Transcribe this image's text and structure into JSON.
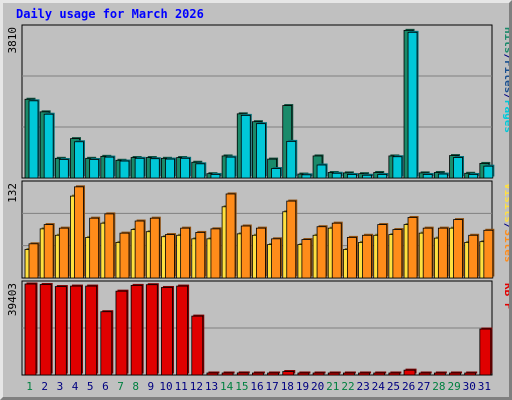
{
  "title": "Daily usage for March 2026",
  "colors": {
    "background": "#c0c0c0",
    "title": "#0000ff",
    "grid": "#808080",
    "pages": "#00c8d8",
    "files": "#1a8a6a",
    "hits": "#2ab4b4",
    "sites": "#ff8c1a",
    "visits": "#ffe040",
    "kbf": "#e00000",
    "weekday_label": "#000080",
    "weekend_label": "#008040"
  },
  "chart_data": [
    {
      "type": "bar",
      "panel": "top",
      "ylabel_max": "3810",
      "ylim": [
        0,
        3810
      ],
      "legend": [
        {
          "text": "Pages",
          "color": "#00c8d8"
        },
        {
          "text": "/",
          "color": "#000080"
        },
        {
          "text": "Files",
          "color": "#1a5090"
        },
        {
          "text": "/",
          "color": "#000080"
        },
        {
          "text": "Hits",
          "color": "#1a8a6a"
        }
      ],
      "categories": [
        "1",
        "2",
        "3",
        "4",
        "5",
        "6",
        "7",
        "8",
        "9",
        "10",
        "11",
        "12",
        "13",
        "14",
        "15",
        "16",
        "17",
        "18",
        "19",
        "20",
        "21",
        "22",
        "23",
        "24",
        "25",
        "26",
        "27",
        "28",
        "29",
        "30",
        "31"
      ],
      "series": [
        {
          "name": "Hits",
          "values": [
            2000,
            1680,
            500,
            1000,
            500,
            550,
            450,
            520,
            520,
            500,
            520,
            400,
            110,
            560,
            1630,
            1430,
            480,
            1840,
            100,
            560,
            140,
            130,
            110,
            140,
            560,
            3750,
            130,
            140,
            570,
            120,
            370
          ]
        },
        {
          "name": "Pages",
          "values": [
            1960,
            1620,
            470,
            920,
            470,
            530,
            430,
            500,
            490,
            480,
            500,
            360,
            90,
            530,
            1590,
            1380,
            240,
            930,
            80,
            330,
            120,
            90,
            70,
            90,
            540,
            3700,
            90,
            100,
            520,
            90,
            300
          ]
        }
      ]
    },
    {
      "type": "bar",
      "panel": "middle",
      "ylabel_max": "132",
      "ylim": [
        0,
        132
      ],
      "legend": [
        {
          "text": "Sites",
          "color": "#ff8c1a"
        },
        {
          "text": "/",
          "color": "#000080"
        },
        {
          "text": "Visits",
          "color": "#ffe040"
        }
      ],
      "categories": [
        "1",
        "2",
        "3",
        "4",
        "5",
        "6",
        "7",
        "8",
        "9",
        "10",
        "11",
        "12",
        "13",
        "14",
        "15",
        "16",
        "17",
        "18",
        "19",
        "20",
        "21",
        "22",
        "23",
        "24",
        "25",
        "26",
        "27",
        "28",
        "29",
        "30",
        "31"
      ],
      "series": [
        {
          "name": "Visits",
          "values": [
            40,
            69,
            60,
            115,
            57,
            77,
            50,
            68,
            65,
            58,
            60,
            55,
            55,
            100,
            62,
            60,
            47,
            93,
            47,
            60,
            70,
            40,
            50,
            60,
            61,
            75,
            63,
            56,
            70,
            50,
            51
          ]
        },
        {
          "name": "Sites",
          "values": [
            48,
            75,
            70,
            128,
            84,
            90,
            63,
            80,
            84,
            61,
            70,
            64,
            69,
            118,
            73,
            70,
            55,
            108,
            54,
            72,
            77,
            57,
            60,
            75,
            68,
            85,
            70,
            70,
            82,
            60,
            67
          ]
        }
      ]
    },
    {
      "type": "bar",
      "panel": "bottom",
      "ylabel_max": "39403",
      "ylim": [
        0,
        39403
      ],
      "legend": [
        {
          "text": "KB F",
          "color": "#e00000"
        }
      ],
      "categories": [
        "1",
        "2",
        "3",
        "4",
        "5",
        "6",
        "7",
        "8",
        "9",
        "10",
        "11",
        "12",
        "13",
        "14",
        "15",
        "16",
        "17",
        "18",
        "19",
        "20",
        "21",
        "22",
        "23",
        "24",
        "25",
        "26",
        "27",
        "28",
        "29",
        "30",
        "31"
      ],
      "series": [
        {
          "name": "KB F",
          "values": [
            39403,
            39200,
            38300,
            38500,
            38500,
            27400,
            36300,
            38800,
            39100,
            37900,
            38500,
            25500,
            300,
            300,
            900,
            800,
            300,
            1500,
            300,
            300,
            300,
            300,
            300,
            300,
            300,
            2100,
            300,
            300,
            300,
            300,
            19900
          ]
        }
      ]
    }
  ],
  "day_labels": [
    {
      "text": "1",
      "weekend": true
    },
    {
      "text": "2",
      "weekend": false
    },
    {
      "text": "3",
      "weekend": false
    },
    {
      "text": "4",
      "weekend": false
    },
    {
      "text": "5",
      "weekend": false
    },
    {
      "text": "6",
      "weekend": false
    },
    {
      "text": "7",
      "weekend": true
    },
    {
      "text": "8",
      "weekend": true
    },
    {
      "text": "9",
      "weekend": false
    },
    {
      "text": "10",
      "weekend": false
    },
    {
      "text": "11",
      "weekend": false
    },
    {
      "text": "12",
      "weekend": false
    },
    {
      "text": "13",
      "weekend": false
    },
    {
      "text": "14",
      "weekend": true
    },
    {
      "text": "15",
      "weekend": true
    },
    {
      "text": "16",
      "weekend": false
    },
    {
      "text": "17",
      "weekend": false
    },
    {
      "text": "18",
      "weekend": false
    },
    {
      "text": "19",
      "weekend": false
    },
    {
      "text": "20",
      "weekend": false
    },
    {
      "text": "21",
      "weekend": true
    },
    {
      "text": "22",
      "weekend": true
    },
    {
      "text": "23",
      "weekend": false
    },
    {
      "text": "24",
      "weekend": false
    },
    {
      "text": "25",
      "weekend": false
    },
    {
      "text": "26",
      "weekend": false
    },
    {
      "text": "27",
      "weekend": false
    },
    {
      "text": "28",
      "weekend": true
    },
    {
      "text": "29",
      "weekend": true
    },
    {
      "text": "30",
      "weekend": false
    },
    {
      "text": "31",
      "weekend": false
    }
  ]
}
